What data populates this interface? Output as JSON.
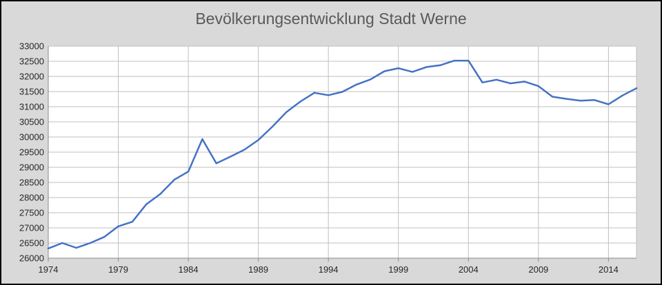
{
  "chart_data": {
    "type": "line",
    "title": "Bevölkerungsentwicklung Stadt Werne",
    "xlabel": "",
    "ylabel": "",
    "xlim": [
      1974,
      2016
    ],
    "ylim": [
      26000,
      33000
    ],
    "y_ticks": [
      26000,
      26500,
      27000,
      27500,
      28000,
      28500,
      29000,
      29500,
      30000,
      30500,
      31000,
      31500,
      32000,
      32500,
      33000
    ],
    "x_ticks": [
      1974,
      1979,
      1984,
      1989,
      1994,
      1999,
      2004,
      2009,
      2014
    ],
    "grid": true,
    "legend": "none",
    "line_color": "#4472c4",
    "series": [
      {
        "x": [
          1974,
          1975,
          1976,
          1977,
          1978,
          1979,
          1980,
          1981,
          1982,
          1983,
          1984,
          1985,
          1986,
          1987,
          1988,
          1989,
          1990,
          1991,
          1992,
          1993,
          1994,
          1995,
          1996,
          1997,
          1998,
          1999,
          2000,
          2001,
          2002,
          2003,
          2004,
          2005,
          2006,
          2007,
          2008,
          2009,
          2010,
          2011,
          2012,
          2013,
          2014,
          2015,
          2016
        ],
        "values": [
          26320,
          26500,
          26340,
          26500,
          26700,
          27050,
          27200,
          27780,
          28120,
          28590,
          28860,
          29930,
          29130,
          29350,
          29580,
          29900,
          30340,
          30820,
          31170,
          31460,
          31380,
          31490,
          31730,
          31900,
          32170,
          32270,
          32150,
          32310,
          32370,
          32520,
          32520,
          31800,
          31890,
          31770,
          31830,
          31680,
          31330,
          31260,
          31200,
          31220,
          31080,
          31370,
          31610
        ]
      }
    ]
  }
}
